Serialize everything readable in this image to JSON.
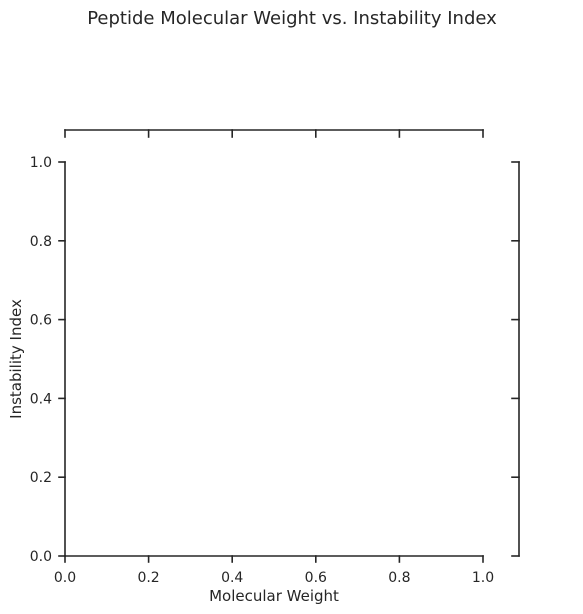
{
  "chart_data": {
    "type": "scatter",
    "title": "Peptide Molecular Weight vs. Instability Index",
    "xlabel": "Molecular Weight",
    "ylabel": "Instability Index",
    "xlim": [
      0.0,
      1.0
    ],
    "ylim": [
      0.0,
      1.0
    ],
    "x_ticks": [
      "0.0",
      "0.2",
      "0.4",
      "0.6",
      "0.8",
      "1.0"
    ],
    "y_ticks": [
      "0.0",
      "0.2",
      "0.4",
      "0.6",
      "0.8",
      "1.0"
    ],
    "series": [],
    "grid": false,
    "marginal_x": {
      "ticks_count": 6,
      "labels": false
    },
    "marginal_y": {
      "ticks_count": 6,
      "labels": false
    }
  }
}
